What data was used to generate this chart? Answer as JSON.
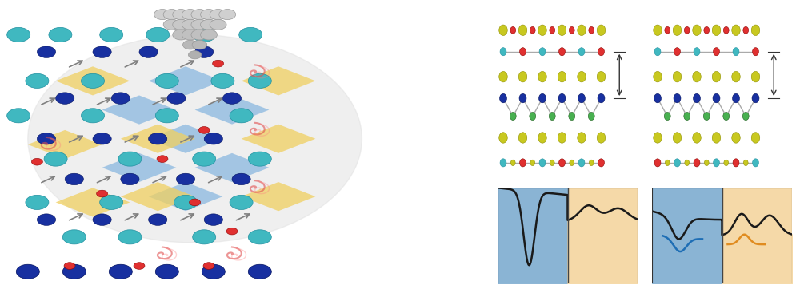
{
  "bg_color": "#ffffff",
  "blue_fill": "#8ab4d4",
  "orange_fill": "#f5d9a8",
  "divider_color": "#444444",
  "curve_color": "#1a1a1a",
  "blue_highlight": "#1e6eb5",
  "orange_highlight": "#e08c20",
  "atom_yellow": "#c8c820",
  "atom_red": "#e03030",
  "atom_cyan": "#40b8c0",
  "atom_green": "#48b050",
  "atom_blue": "#1830a0",
  "atom_blue_ec": "#001060",
  "bond_color": "#aaaaaa",
  "label_fontsize": 7.5
}
